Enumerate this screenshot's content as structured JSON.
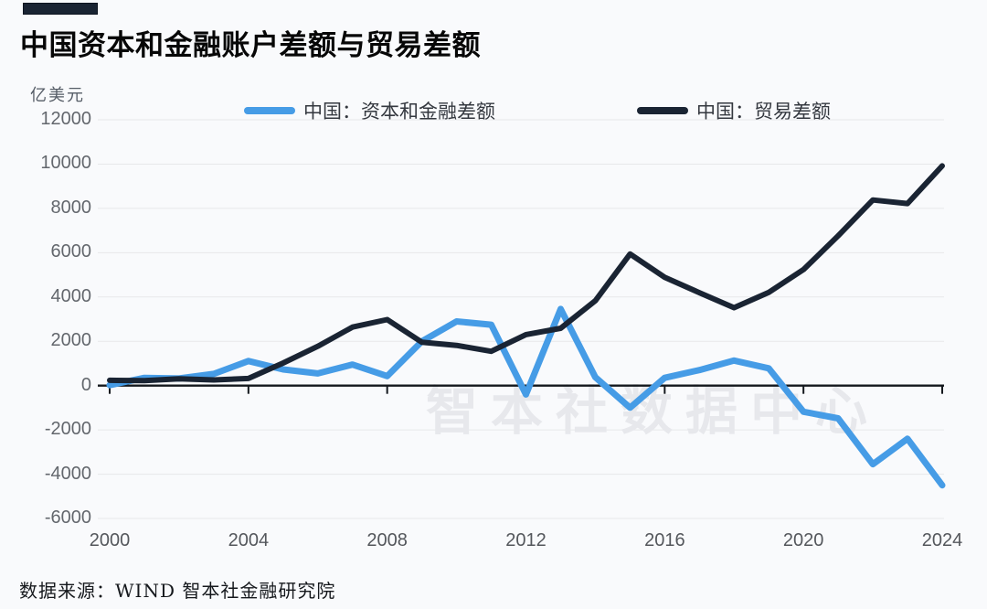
{
  "header": {
    "title": "中国资本和金融账户差额与贸易差额",
    "unit_label": "亿美元"
  },
  "legend": {
    "items": [
      {
        "label": "中国：资本和金融差额",
        "color": "#469ce6"
      },
      {
        "label": "中国：贸易差额",
        "color": "#1a2433"
      }
    ]
  },
  "watermark": "智本社数据中心",
  "footer": {
    "source": "数据来源：WIND 智本社金融研究院"
  },
  "chart_data": {
    "type": "line",
    "title": "中国资本和金融账户差额与贸易差额",
    "unit": "亿美元",
    "x": [
      2000,
      2001,
      2002,
      2003,
      2004,
      2005,
      2006,
      2007,
      2008,
      2009,
      2010,
      2011,
      2012,
      2013,
      2014,
      2015,
      2016,
      2017,
      2018,
      2019,
      2020,
      2021,
      2022,
      2023,
      2024
    ],
    "series": [
      {
        "name": "中国：资本和金融差额",
        "color": "#469ce6",
        "values": [
          20,
          350,
          320,
          530,
          1110,
          730,
          550,
          950,
          430,
          2000,
          2900,
          2750,
          -400,
          3460,
          380,
          -1000,
          350,
          700,
          1130,
          780,
          -1180,
          -1480,
          -3550,
          -2400,
          -4500
        ]
      },
      {
        "name": "中国：贸易差额",
        "color": "#1a2433",
        "values": [
          241,
          226,
          304,
          255,
          321,
          1020,
          1775,
          2643,
          2981,
          1957,
          1815,
          1549,
          2303,
          2590,
          3830,
          5939,
          4889,
          4195,
          3518,
          4211,
          5240,
          6764,
          8380,
          8221,
          9922
        ]
      }
    ],
    "ylim": [
      -6000,
      12000
    ],
    "y_ticks": [
      12000,
      10000,
      8000,
      6000,
      4000,
      2000,
      0,
      -2000,
      -4000,
      -6000
    ],
    "x_ticks": [
      2000,
      2004,
      2008,
      2012,
      2016,
      2020,
      2024
    ],
    "grid": true,
    "legend_position": "top",
    "source": "数据来源：WIND 智本社金融研究院"
  }
}
